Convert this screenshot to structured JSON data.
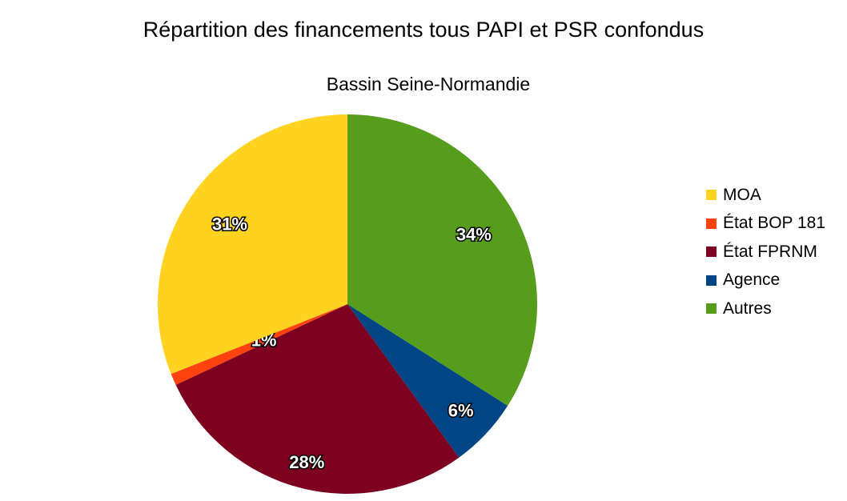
{
  "chart_data": {
    "type": "pie",
    "title": "Répartition des financements tous PAPI et PSR confondus",
    "subtitle": "Bassin Seine-Normandie",
    "legend_position": "right",
    "slices": [
      {
        "name": "Autres",
        "value": 34,
        "label": "34%",
        "color": "#579d1c"
      },
      {
        "name": "Agence",
        "value": 6,
        "label": "6%",
        "color": "#004586"
      },
      {
        "name": "État FPRNM",
        "value": 28,
        "label": "28%",
        "color": "#7e0021"
      },
      {
        "name": "État BOP 181",
        "value": 1,
        "label": "1%",
        "color": "#ff420e"
      },
      {
        "name": "MOA",
        "value": 31,
        "label": "31%",
        "color": "#ffd320"
      }
    ],
    "legend_order": [
      "MOA",
      "État BOP 181",
      "État FPRNM",
      "Agence",
      "Autres"
    ]
  }
}
